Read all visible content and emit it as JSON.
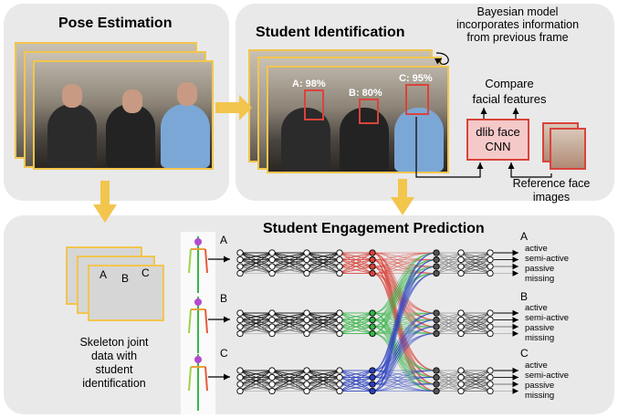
{
  "panels": {
    "pose": {
      "title": "Pose Estimation"
    },
    "identification": {
      "title": "Student Identification"
    },
    "engagement": {
      "title": "Student Engagement Prediction"
    }
  },
  "identification": {
    "bayes_note_lines": [
      "Bayesian model",
      "incorporates information",
      "from previous frame"
    ],
    "compare_lines": [
      "Compare",
      "facial features"
    ],
    "dlib_lines": [
      "dlib face",
      "CNN"
    ],
    "reference_lines": [
      "Reference face",
      "images"
    ],
    "face_labels": [
      "A: 98%",
      "B: 80%",
      "C: 95%"
    ]
  },
  "pose": {
    "skeleton_caption_lines": [
      "Skeleton joint",
      "data with",
      "student",
      "identification"
    ],
    "skeleton_letters": [
      "A",
      "B",
      "C"
    ]
  },
  "engagement": {
    "students": [
      "A",
      "B",
      "C"
    ],
    "classes": [
      "active",
      "semi-active",
      "passive",
      "missing"
    ]
  },
  "colors": {
    "panel_bg": "#e9e9e9",
    "arrow": "#f2c54d",
    "face_box": "#d9433b",
    "dlib_fill": "#f6c9c9",
    "group_red": "#d9433b",
    "group_green": "#39b54a",
    "group_blue": "#2a3fbf",
    "group_gray": "#777777"
  }
}
